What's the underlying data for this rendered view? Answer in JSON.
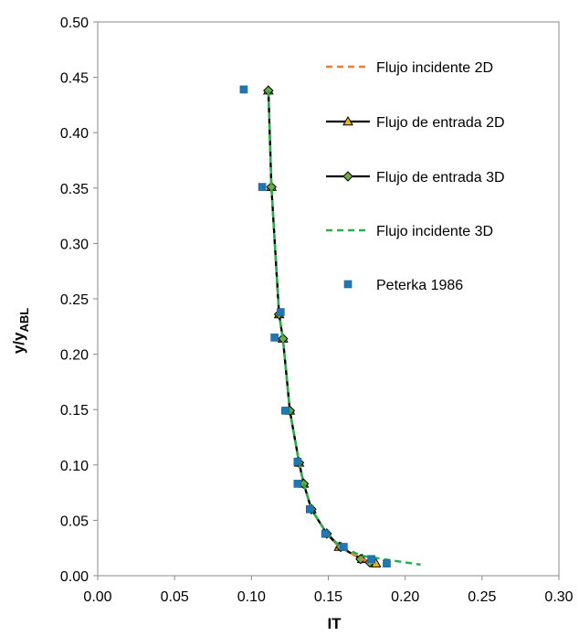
{
  "chart_data": {
    "type": "scatter",
    "title": "",
    "xlabel": "IT",
    "ylabel": {
      "main": "y/y",
      "subscript": "ABL"
    },
    "xlim": [
      0,
      0.3
    ],
    "ylim": [
      0,
      0.5
    ],
    "xticks": [
      "0.00",
      "0.05",
      "0.10",
      "0.15",
      "0.20",
      "0.25",
      "0.30"
    ],
    "yticks": [
      "0.00",
      "0.05",
      "0.10",
      "0.15",
      "0.20",
      "0.25",
      "0.30",
      "0.35",
      "0.40",
      "0.45",
      "0.50"
    ],
    "grid": false,
    "legend_position": "top-right",
    "series": [
      {
        "name": "Flujo incidente 2D",
        "style": "dashed-line",
        "color": "#ED7D31",
        "points": [
          [
            0.111,
            0.438
          ],
          [
            0.113,
            0.351
          ],
          [
            0.118,
            0.236
          ],
          [
            0.1205,
            0.214
          ],
          [
            0.125,
            0.149
          ],
          [
            0.131,
            0.102
          ],
          [
            0.134,
            0.083
          ],
          [
            0.139,
            0.06
          ],
          [
            0.149,
            0.038
          ],
          [
            0.157,
            0.026
          ],
          [
            0.172,
            0.015
          ],
          [
            0.181,
            0.011
          ]
        ]
      },
      {
        "name": "Flujo de entrada 2D",
        "style": "line-triangle",
        "color": "#000000",
        "marker_fill": "#F5B800",
        "points": [
          [
            0.111,
            0.438
          ],
          [
            0.113,
            0.351
          ],
          [
            0.118,
            0.236
          ],
          [
            0.1205,
            0.214
          ],
          [
            0.125,
            0.149
          ],
          [
            0.131,
            0.102
          ],
          [
            0.134,
            0.083
          ],
          [
            0.139,
            0.06
          ],
          [
            0.149,
            0.038
          ],
          [
            0.157,
            0.026
          ],
          [
            0.172,
            0.015
          ],
          [
            0.181,
            0.011
          ]
        ]
      },
      {
        "name": "Flujo de entrada 3D",
        "style": "line-diamond",
        "color": "#000000",
        "marker_fill": "#70AD47",
        "points": [
          [
            0.111,
            0.438
          ],
          [
            0.113,
            0.351
          ],
          [
            0.118,
            0.236
          ],
          [
            0.1205,
            0.214
          ],
          [
            0.125,
            0.149
          ],
          [
            0.131,
            0.102
          ],
          [
            0.134,
            0.083
          ],
          [
            0.139,
            0.06
          ],
          [
            0.149,
            0.038
          ],
          [
            0.158,
            0.026
          ],
          [
            0.171,
            0.015
          ],
          [
            0.177,
            0.012
          ]
        ]
      },
      {
        "name": "Flujo incidente 3D",
        "style": "dashed-line",
        "color": "#22B14C",
        "points": [
          [
            0.111,
            0.438
          ],
          [
            0.113,
            0.351
          ],
          [
            0.118,
            0.236
          ],
          [
            0.1205,
            0.214
          ],
          [
            0.125,
            0.149
          ],
          [
            0.131,
            0.102
          ],
          [
            0.134,
            0.083
          ],
          [
            0.139,
            0.06
          ],
          [
            0.149,
            0.038
          ],
          [
            0.158,
            0.026
          ],
          [
            0.172,
            0.018
          ],
          [
            0.19,
            0.014
          ],
          [
            0.21,
            0.01
          ]
        ]
      },
      {
        "name": "Peterka 1986",
        "style": "square-marker",
        "color": "#1F77B4",
        "points": [
          [
            0.095,
            0.439
          ],
          [
            0.107,
            0.351
          ],
          [
            0.119,
            0.238
          ],
          [
            0.115,
            0.215
          ],
          [
            0.122,
            0.149
          ],
          [
            0.13,
            0.103
          ],
          [
            0.13,
            0.083
          ],
          [
            0.138,
            0.06
          ],
          [
            0.148,
            0.038
          ],
          [
            0.16,
            0.026
          ],
          [
            0.178,
            0.015
          ],
          [
            0.188,
            0.011
          ]
        ]
      }
    ]
  }
}
